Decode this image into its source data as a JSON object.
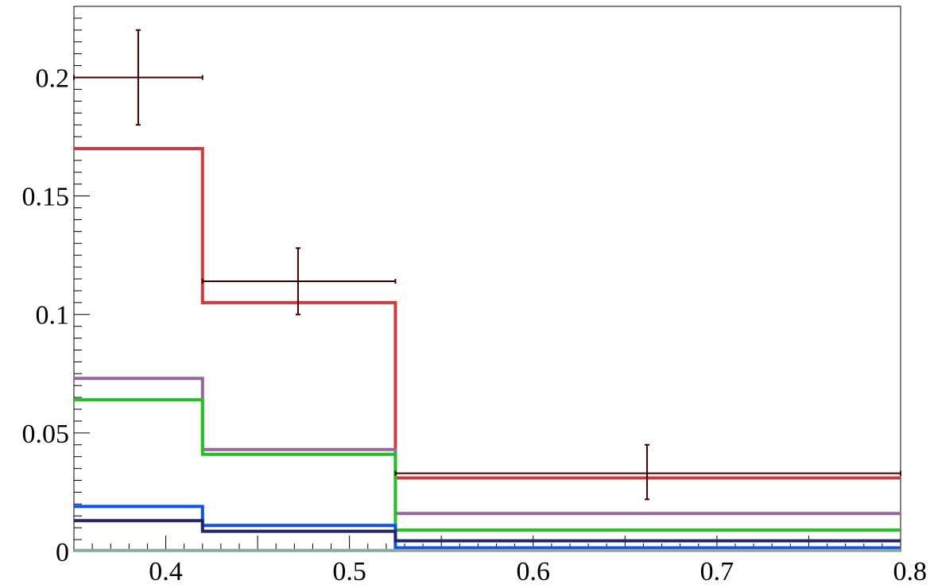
{
  "chart_data": {
    "type": "line",
    "title": "",
    "xlabel": "",
    "ylabel": "",
    "xlim": [
      0.35,
      0.8
    ],
    "ylim": [
      0,
      0.23
    ],
    "grid": false,
    "bin_edges": [
      0.35,
      0.42,
      0.525,
      0.8
    ],
    "x_ticks": [
      0.4,
      0.5,
      0.6,
      0.7,
      0.8
    ],
    "x_tick_labels": [
      "0.4",
      "0.5",
      "0.6",
      "0.7",
      "0.8"
    ],
    "y_ticks": [
      0,
      0.05,
      0.1,
      0.15,
      0.2
    ],
    "y_tick_labels": [
      "0",
      "0.05",
      "0.1",
      "0.15",
      "0.2"
    ],
    "data_points": [
      {
        "x": 0.385,
        "xerr": [
          0.35,
          0.42
        ],
        "y": 0.2,
        "yerr": [
          0.18,
          0.22
        ]
      },
      {
        "x": 0.472,
        "xerr": [
          0.42,
          0.525
        ],
        "y": 0.114,
        "yerr": [
          0.1,
          0.128
        ]
      },
      {
        "x": 0.662,
        "xerr": [
          0.525,
          0.8
        ],
        "y": 0.033,
        "yerr": [
          0.022,
          0.045
        ]
      }
    ],
    "data_color": "#3b0000",
    "series": [
      {
        "color": "#d23a3a",
        "values": [
          0.17,
          0.105,
          0.031
        ]
      },
      {
        "color": "#9a64a0",
        "values": [
          0.073,
          0.043,
          0.016
        ]
      },
      {
        "color": "#1ec41e",
        "values": [
          0.064,
          0.041,
          0.009
        ]
      },
      {
        "color": "#0a50f0",
        "values": [
          0.019,
          0.011,
          0.0015
        ]
      },
      {
        "color": "#24246e",
        "values": [
          0.013,
          0.0085,
          0.0045
        ]
      },
      {
        "color": "#88a8a0",
        "values": [
          0.0004,
          0.0004,
          0.0004
        ]
      }
    ]
  }
}
